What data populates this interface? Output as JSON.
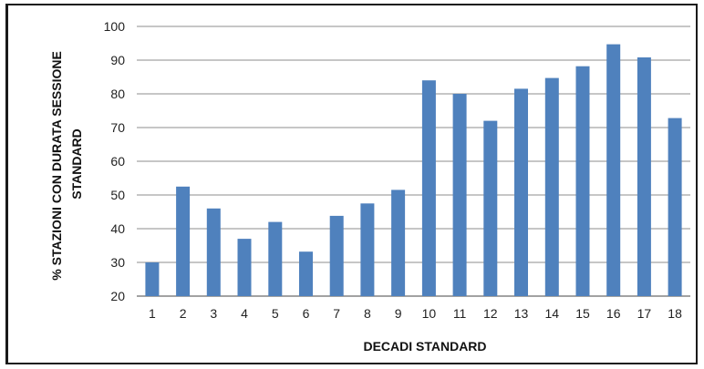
{
  "chart_data": {
    "type": "bar",
    "categories": [
      "1",
      "2",
      "3",
      "4",
      "5",
      "6",
      "7",
      "8",
      "9",
      "10",
      "11",
      "12",
      "13",
      "14",
      "15",
      "16",
      "17",
      "18"
    ],
    "values": [
      30,
      52.5,
      46,
      37,
      42,
      33.2,
      43.8,
      47.5,
      51.5,
      84,
      80,
      72,
      81.5,
      84.7,
      88.2,
      94.7,
      90.8,
      72.8
    ],
    "xlabel": "DECADI STANDARD",
    "ylabel_lines": [
      "% STAZIONI CON DURATA SESSIONE",
      "STANDARD"
    ],
    "ylim": [
      20,
      100
    ],
    "yticks": [
      "20",
      "30",
      "40",
      "50",
      "60",
      "70",
      "80",
      "90",
      "100"
    ],
    "grid": true,
    "legend": "none",
    "bar_color": "#4f81bd",
    "grid_color": "#8c8c8c"
  }
}
